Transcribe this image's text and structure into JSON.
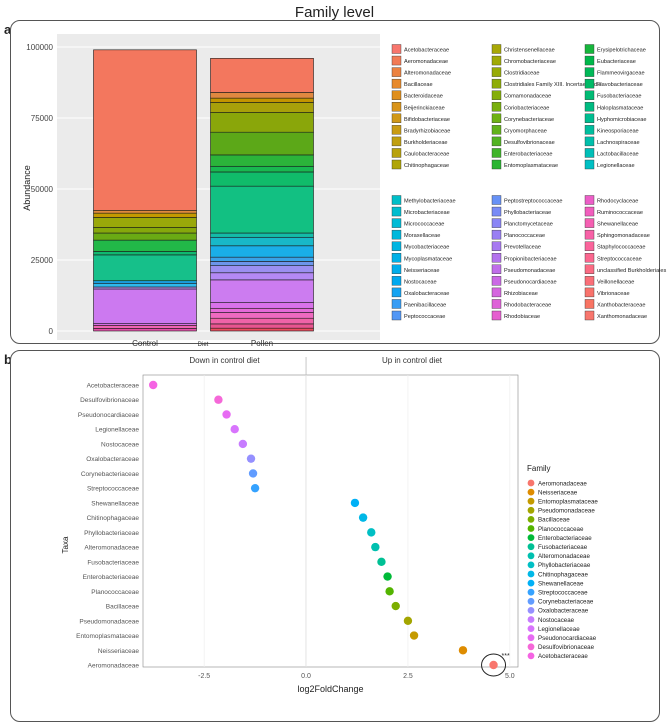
{
  "figure_title": "Family level",
  "panel_a": {
    "label": "a)",
    "chart_data": {
      "type": "bar",
      "stacked": true,
      "xlabel": "Diet",
      "ylabel": "Abundance",
      "categories": [
        "Control",
        "Pollen"
      ],
      "ylim": [
        0,
        100000
      ],
      "yticks": [
        0,
        25000,
        50000,
        75000,
        100000
      ],
      "totals": [
        99000,
        96000
      ],
      "segments": [
        {
          "category": "Control",
          "from": 0,
          "to": 900,
          "color": "#e34fa8"
        },
        {
          "category": "Control",
          "from": 900,
          "to": 2000,
          "color": "#f064b2"
        },
        {
          "category": "Control",
          "from": 2000,
          "to": 2600,
          "color": "#d96ce8"
        },
        {
          "category": "Control",
          "from": 2600,
          "to": 14800,
          "color": "#cc79f0"
        },
        {
          "category": "Control",
          "from": 14800,
          "to": 15500,
          "color": "#b792f0"
        },
        {
          "category": "Control",
          "from": 15500,
          "to": 16800,
          "color": "#2fb8ec"
        },
        {
          "category": "Control",
          "from": 16800,
          "to": 17700,
          "color": "#1aa0e0"
        },
        {
          "category": "Control",
          "from": 17700,
          "to": 26800,
          "color": "#16c08a"
        },
        {
          "category": "Control",
          "from": 26800,
          "to": 28000,
          "color": "#0fb870"
        },
        {
          "category": "Control",
          "from": 28000,
          "to": 32000,
          "color": "#22b848"
        },
        {
          "category": "Control",
          "from": 32000,
          "to": 34500,
          "color": "#6aaa14"
        },
        {
          "category": "Control",
          "from": 34500,
          "to": 36500,
          "color": "#86a80c"
        },
        {
          "category": "Control",
          "from": 36500,
          "to": 40000,
          "color": "#99a80a"
        },
        {
          "category": "Control",
          "from": 40000,
          "to": 41500,
          "color": "#c49a00"
        },
        {
          "category": "Control",
          "from": 41500,
          "to": 42500,
          "color": "#e08a3c"
        },
        {
          "category": "Control",
          "from": 42500,
          "to": 99000,
          "color": "#f3775e"
        },
        {
          "category": "Pollen",
          "from": 0,
          "to": 1000,
          "color": "#e94b5e"
        },
        {
          "category": "Pollen",
          "from": 1000,
          "to": 2500,
          "color": "#ea5490"
        },
        {
          "category": "Pollen",
          "from": 2500,
          "to": 4500,
          "color": "#f063a8"
        },
        {
          "category": "Pollen",
          "from": 4500,
          "to": 6500,
          "color": "#ef6ac0"
        },
        {
          "category": "Pollen",
          "from": 6500,
          "to": 8000,
          "color": "#e56ad8"
        },
        {
          "category": "Pollen",
          "from": 8000,
          "to": 10000,
          "color": "#d972ea"
        },
        {
          "category": "Pollen",
          "from": 10000,
          "to": 18000,
          "color": "#cc7cf0"
        },
        {
          "category": "Pollen",
          "from": 18000,
          "to": 20500,
          "color": "#b489f4"
        },
        {
          "category": "Pollen",
          "from": 20500,
          "to": 23000,
          "color": "#9b8ff0"
        },
        {
          "category": "Pollen",
          "from": 23000,
          "to": 24500,
          "color": "#6c95ea"
        },
        {
          "category": "Pollen",
          "from": 24500,
          "to": 26000,
          "color": "#3aa2e8"
        },
        {
          "category": "Pollen",
          "from": 26000,
          "to": 30000,
          "color": "#1aaee8"
        },
        {
          "category": "Pollen",
          "from": 30000,
          "to": 33000,
          "color": "#18b8c8"
        },
        {
          "category": "Pollen",
          "from": 33000,
          "to": 34500,
          "color": "#14bca8"
        },
        {
          "category": "Pollen",
          "from": 34500,
          "to": 51000,
          "color": "#12c082"
        },
        {
          "category": "Pollen",
          "from": 51000,
          "to": 56000,
          "color": "#10bb6a"
        },
        {
          "category": "Pollen",
          "from": 56000,
          "to": 58000,
          "color": "#18b850"
        },
        {
          "category": "Pollen",
          "from": 58000,
          "to": 62000,
          "color": "#2bb43a"
        },
        {
          "category": "Pollen",
          "from": 62000,
          "to": 70000,
          "color": "#5ca818"
        },
        {
          "category": "Pollen",
          "from": 70000,
          "to": 77000,
          "color": "#8aa60a"
        },
        {
          "category": "Pollen",
          "from": 77000,
          "to": 80500,
          "color": "#a8a00a"
        },
        {
          "category": "Pollen",
          "from": 80500,
          "to": 82000,
          "color": "#c39400"
        },
        {
          "category": "Pollen",
          "from": 82000,
          "to": 84000,
          "color": "#e08840"
        },
        {
          "category": "Pollen",
          "from": 84000,
          "to": 96000,
          "color": "#f3775e"
        }
      ]
    },
    "legend_columns": [
      [
        {
          "name": "Acetobacteraceae",
          "color": "#f8766d"
        },
        {
          "name": "Aeromonadaceae",
          "color": "#f27b55"
        },
        {
          "name": "Alteromonadaceae",
          "color": "#ec8240"
        },
        {
          "name": "Bacillaceae",
          "color": "#e78a2c"
        },
        {
          "name": "Bacteroidaceae",
          "color": "#e08f1c"
        },
        {
          "name": "Beijerinckiaceae",
          "color": "#d9941a"
        },
        {
          "name": "Bifidobacteriaceae",
          "color": "#d09818"
        },
        {
          "name": "Bradyrhizobiaceae",
          "color": "#c99c14"
        },
        {
          "name": "Burkholderiaceae",
          "color": "#c09f10"
        },
        {
          "name": "Caulobacteraceae",
          "color": "#b8a20c"
        },
        {
          "name": "Chitinophagaceae",
          "color": "#b0a508"
        }
      ],
      [
        {
          "name": "Christensenellaceae",
          "color": "#a8a806"
        },
        {
          "name": "Chromobacteriaceae",
          "color": "#a0aa06"
        },
        {
          "name": "Clostridiaceae",
          "color": "#97ab06"
        },
        {
          "name": "Clostridiales Family XIII. Incertae Sedis",
          "color": "#8ead08"
        },
        {
          "name": "Comamonadaceae",
          "color": "#84ae0a"
        },
        {
          "name": "Coriobacteriaceae",
          "color": "#79b00e"
        },
        {
          "name": "Corynebacteriaceae",
          "color": "#6eb114"
        },
        {
          "name": "Cryomorphaceae",
          "color": "#61b21a"
        },
        {
          "name": "Desulfovibrionaceae",
          "color": "#52b322"
        },
        {
          "name": "Enterobacteriaceae",
          "color": "#40b42a"
        },
        {
          "name": "Entomoplasmataceae",
          "color": "#2ab532"
        }
      ],
      [
        {
          "name": "Erysipelotrichaceae",
          "color": "#16b63c"
        },
        {
          "name": "Eubacteriaceae",
          "color": "#00b84a"
        },
        {
          "name": "Flammeovirgaceae",
          "color": "#00b958"
        },
        {
          "name": "Flavobacteriaceae",
          "color": "#00ba66"
        },
        {
          "name": "Fusobacteriaceae",
          "color": "#00bb74"
        },
        {
          "name": "Haloplasmataceae",
          "color": "#00bc82"
        },
        {
          "name": "Hyphomicrobiaceae",
          "color": "#00bd90"
        },
        {
          "name": "Kineosporiaceae",
          "color": "#00be9e"
        },
        {
          "name": "Lachnospiraceae",
          "color": "#00bfab"
        },
        {
          "name": "Lactobacillaceae",
          "color": "#00bfb8"
        },
        {
          "name": "Legionellaceae",
          "color": "#00c0c4"
        }
      ],
      [
        {
          "name": "Methylobacteriaceae",
          "color": "#00bfc8"
        },
        {
          "name": "Microbacteriaceae",
          "color": "#00bdcf"
        },
        {
          "name": "Micrococcaceae",
          "color": "#00bbd6"
        },
        {
          "name": "Moraxellaceae",
          "color": "#00b8dc"
        },
        {
          "name": "Mycobacteriaceae",
          "color": "#00b5e2"
        },
        {
          "name": "Mycoplasmataceae",
          "color": "#00b1e7"
        },
        {
          "name": "Neisseriaceae",
          "color": "#00adeb"
        },
        {
          "name": "Nostocaceae",
          "color": "#00a8ef"
        },
        {
          "name": "Oxalobacteraceae",
          "color": "#14a3f2"
        },
        {
          "name": "Paenibacillaceae",
          "color": "#389df4"
        },
        {
          "name": "Peptococcaceae",
          "color": "#5297f5"
        }
      ],
      [
        {
          "name": "Peptostreptococcaceae",
          "color": "#6791f6"
        },
        {
          "name": "Phyllobacteriaceae",
          "color": "#798bf6"
        },
        {
          "name": "Planctomycetaceae",
          "color": "#8a85f5"
        },
        {
          "name": "Planococcaceae",
          "color": "#997ff3"
        },
        {
          "name": "Prevotellaceae",
          "color": "#a779f1"
        },
        {
          "name": "Propionibacteriaceae",
          "color": "#b473ee"
        },
        {
          "name": "Pseudomonadaceae",
          "color": "#c06eea"
        },
        {
          "name": "Pseudonocardiaceae",
          "color": "#cb69e5"
        },
        {
          "name": "Rhizobiaceae",
          "color": "#d565df"
        },
        {
          "name": "Rhodobacteraceae",
          "color": "#de62d8"
        },
        {
          "name": "Rhodobiaceae",
          "color": "#e65fd0"
        }
      ],
      [
        {
          "name": "Rhodocyclaceae",
          "color": "#ec5ec7"
        },
        {
          "name": "Ruminococcaceae",
          "color": "#f15ebd"
        },
        {
          "name": "Shewanellaceae",
          "color": "#f55fb2"
        },
        {
          "name": "Sphingomonadaceae",
          "color": "#f861a7"
        },
        {
          "name": "Staphylococcaceae",
          "color": "#fa649b"
        },
        {
          "name": "Streptococcaceae",
          "color": "#fb678f"
        },
        {
          "name": "unclassified Burkholderiales",
          "color": "#fb6b83"
        },
        {
          "name": "Veillonellaceae",
          "color": "#fa6f78"
        },
        {
          "name": "Vibrionaceae",
          "color": "#f9736c"
        },
        {
          "name": "Xanthobacteraceae",
          "color": "#f87463"
        },
        {
          "name": "Xanthomonadaceae",
          "color": "#f8766d"
        }
      ]
    ]
  },
  "panel_b": {
    "label": "b)",
    "chart_data": {
      "type": "scatter",
      "xlabel": "log2FoldChange",
      "ylabel": "Taxa",
      "xlim": [
        -4.0,
        5.2
      ],
      "xticks": [
        -2.5,
        0.0,
        2.5,
        5.0
      ],
      "facet_labels": [
        "Down in control diet",
        "Up in control diet"
      ],
      "facet_split_x": 0,
      "legend_title": "Family",
      "annotation": "***",
      "highlighted_taxon": "Aeromonadaceae",
      "points": [
        {
          "taxon": "Acetobacteraceae",
          "x": -3.75,
          "color": "#f564e3"
        },
        {
          "taxon": "Desulfovibrionaceae",
          "x": -2.15,
          "color": "#f568d8"
        },
        {
          "taxon": "Pseudonocardiaceae",
          "x": -1.95,
          "color": "#e76bf3"
        },
        {
          "taxon": "Legionellaceae",
          "x": -1.75,
          "color": "#d874fd"
        },
        {
          "taxon": "Nostocaceae",
          "x": -1.55,
          "color": "#c77cff"
        },
        {
          "taxon": "Oxalobacteraceae",
          "x": -1.35,
          "color": "#9590ff"
        },
        {
          "taxon": "Corynebacteriaceae",
          "x": -1.3,
          "color": "#619cff"
        },
        {
          "taxon": "Streptococcaceae",
          "x": -1.25,
          "color": "#35a2ff"
        },
        {
          "taxon": "Shewanellaceae",
          "x": 1.2,
          "color": "#00b0f6"
        },
        {
          "taxon": "Chitinophagaceae",
          "x": 1.4,
          "color": "#00b8e7"
        },
        {
          "taxon": "Phyllobacteriaceae",
          "x": 1.6,
          "color": "#00bfc4"
        },
        {
          "taxon": "Alteromonadaceae",
          "x": 1.7,
          "color": "#00c0af"
        },
        {
          "taxon": "Fusobacteriaceae",
          "x": 1.85,
          "color": "#00c094"
        },
        {
          "taxon": "Enterobacteriaceae",
          "x": 2.0,
          "color": "#00ba38"
        },
        {
          "taxon": "Planococcaceae",
          "x": 2.05,
          "color": "#53b400"
        },
        {
          "taxon": "Bacillaceae",
          "x": 2.2,
          "color": "#7cae00"
        },
        {
          "taxon": "Pseudomonadaceae",
          "x": 2.5,
          "color": "#a3a500"
        },
        {
          "taxon": "Entomoplasmataceae",
          "x": 2.65,
          "color": "#c49a00"
        },
        {
          "taxon": "Neisseriaceae",
          "x": 3.85,
          "color": "#de8c00"
        },
        {
          "taxon": "Aeromonadaceae",
          "x": 4.6,
          "color": "#f8766d"
        }
      ]
    },
    "legend_items": [
      {
        "name": "Aeromonadaceae",
        "color": "#f8766d"
      },
      {
        "name": "Neisseriaceae",
        "color": "#de8c00"
      },
      {
        "name": "Entomoplasmataceae",
        "color": "#c49a00"
      },
      {
        "name": "Pseudomonadaceae",
        "color": "#a3a500"
      },
      {
        "name": "Bacillaceae",
        "color": "#7cae00"
      },
      {
        "name": "Planococcaceae",
        "color": "#53b400"
      },
      {
        "name": "Enterobacteriaceae",
        "color": "#00ba38"
      },
      {
        "name": "Fusobacteriaceae",
        "color": "#00c094"
      },
      {
        "name": "Alteromonadaceae",
        "color": "#00c0af"
      },
      {
        "name": "Phyllobacteriaceae",
        "color": "#00bfc4"
      },
      {
        "name": "Chitinophagaceae",
        "color": "#00b8e7"
      },
      {
        "name": "Shewanellaceae",
        "color": "#00b0f6"
      },
      {
        "name": "Streptococcaceae",
        "color": "#35a2ff"
      },
      {
        "name": "Corynebacteriaceae",
        "color": "#619cff"
      },
      {
        "name": "Oxalobacteraceae",
        "color": "#9590ff"
      },
      {
        "name": "Nostocaceae",
        "color": "#c77cff"
      },
      {
        "name": "Legionellaceae",
        "color": "#d874fd"
      },
      {
        "name": "Pseudonocardiaceae",
        "color": "#e76bf3"
      },
      {
        "name": "Desulfovibrionaceae",
        "color": "#f568d8"
      },
      {
        "name": "Acetobacteraceae",
        "color": "#f564e3"
      }
    ]
  }
}
